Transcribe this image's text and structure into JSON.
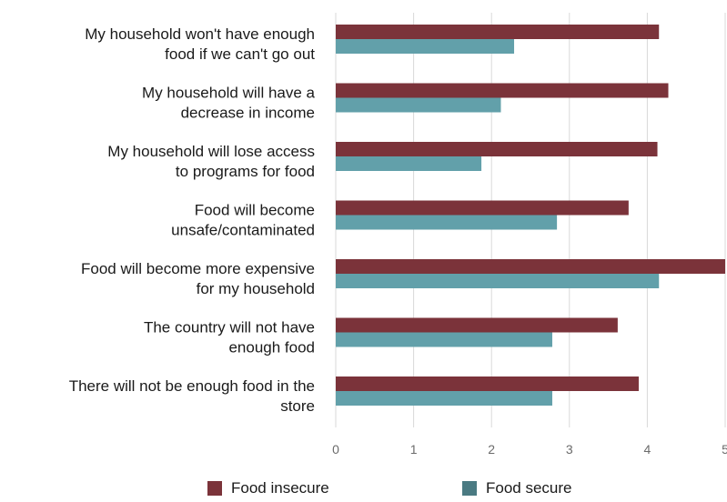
{
  "chart_data": {
    "type": "bar",
    "orientation": "horizontal",
    "categories": [
      [
        "My household won't have enough",
        "food if we can't go out"
      ],
      [
        "My household will have a",
        "decrease in income"
      ],
      [
        "My household will lose access",
        "to programs for food"
      ],
      [
        "Food will become",
        "unsafe/contaminated"
      ],
      [
        "Food will become more expensive",
        "for my household"
      ],
      [
        "The country will not have",
        "enough food"
      ],
      [
        "There will not be enough food in the",
        "store"
      ]
    ],
    "series": [
      {
        "name": "Food insecure",
        "color": "#7b333a",
        "values": [
          4.15,
          4.27,
          4.13,
          3.76,
          5.0,
          3.62,
          3.89
        ]
      },
      {
        "name": "Food secure",
        "color": "#62a0aa",
        "values": [
          2.29,
          2.12,
          1.87,
          2.84,
          4.15,
          2.78,
          2.78
        ]
      }
    ],
    "xlim": [
      0,
      5
    ],
    "xticks": [
      "0",
      "1",
      "2",
      "3",
      "4",
      "5"
    ],
    "grid": true,
    "legend_position": "bottom",
    "legend_swatch_colors": [
      "#7b333a",
      "#4a7a82"
    ]
  }
}
